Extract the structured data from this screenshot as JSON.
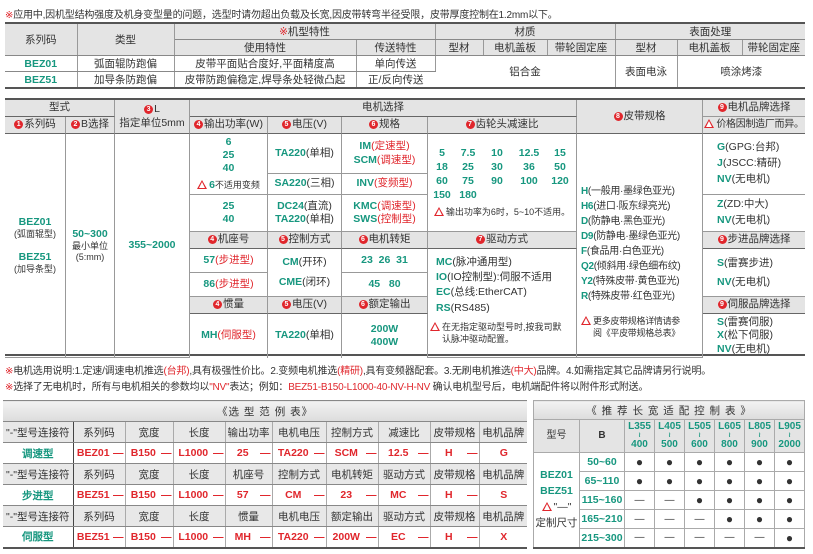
{
  "top_note": {
    "mark": "※",
    "text": "应用中,因机型结构强度及机身变型量的问题，选型时请勿超出负载及长宽,因皮带转弯半径受限，皮带厚度控制在1.2mm以下。"
  },
  "spec_table": {
    "h_series": "系列码",
    "h_type": "类型",
    "h_feature_mark": "※",
    "h_feature": "机型特性",
    "h_material": "材质",
    "h_surface": "表面处理",
    "h_usage": "使用特性",
    "h_transfer": "传送特性",
    "h_profile": "型材",
    "h_cover": "电机盖板",
    "h_pulley": "带轮固定座",
    "rows": [
      {
        "code": "BEZ01",
        "type": "弧面辊防跑偏",
        "usage": "皮带平面贴合度好,平面精度高",
        "transfer": "单向传送"
      },
      {
        "code": "BEZ51",
        "type": "加导条防跑偏",
        "usage": "皮带防跑偏稳定,焊导条处轻微凸起",
        "transfer": "正/反向传送"
      }
    ],
    "material": "铝合金",
    "surface_profile": "表面电泳",
    "surface_other": "喷涂烤漆"
  },
  "selection": {
    "h_model": "型式",
    "h_series": "系列码",
    "h_b": "B选择",
    "h_l": "L",
    "h_l_unit": "指定单位5mm",
    "h_motor": "电机选择",
    "h_power": "输出功率(W)",
    "h_voltage": "电压(V)",
    "h_spec": "规格",
    "h_ratio": "齿轮头减速比",
    "h_belt": "皮带规格",
    "h_brand": "电机品牌选择",
    "brand_note": "价格因制造厂而异。",
    "nums": {
      "n1": "1",
      "n2": "2",
      "n3": "3",
      "n4": "4",
      "n5": "5",
      "n6": "6",
      "n7": "7",
      "n8": "8",
      "n9": "9"
    },
    "series": [
      {
        "code": "BEZ01",
        "desc": "(弧面辊型)"
      },
      {
        "code": "BEZ51",
        "desc": "(加导条型)"
      }
    ],
    "b_range": "50~300",
    "b_unit1": "最小单位",
    "b_unit2": "(5:mm)",
    "l_range": "355~2000",
    "power_a": [
      "6",
      "25",
      "40"
    ],
    "power_note_val": "6",
    "power_note": "不适用变频",
    "volt_a": {
      "code": "TA220",
      "desc": "(单相)"
    },
    "volt_b": {
      "code": "SA220",
      "desc": "(三相)"
    },
    "spec_a": [
      {
        "code": "IM",
        "desc": "(定速型)"
      },
      {
        "code": "SCM",
        "desc": "(调速型)"
      }
    ],
    "spec_b": {
      "code": "INV",
      "desc": "(变频型)"
    },
    "power_c": [
      "25",
      "40"
    ],
    "volt_c": [
      {
        "code": "DC24",
        "desc": "(直流)"
      },
      {
        "code": "TA220",
        "desc": "(单相)"
      }
    ],
    "spec_c": [
      {
        "code": "KMC",
        "desc": "(调速型)"
      },
      {
        "code": "SWS",
        "desc": "(控制型)"
      }
    ],
    "ratios": [
      "5",
      "7.5",
      "10",
      "12.5",
      "15",
      "18",
      "25",
      "30",
      "36",
      "50",
      "60",
      "75",
      "90",
      "100",
      "120",
      "150",
      "180"
    ],
    "ratio_note": "输出功率为6时，5~10不适用。",
    "h_frame": "机座号",
    "h_control": "控制方式",
    "h_torque": "电机转矩",
    "h_drive": "驱动方式",
    "frames": [
      {
        "code": "57",
        "desc": "(步进型)"
      },
      {
        "code": "86",
        "desc": "(步进型)"
      }
    ],
    "controls": [
      {
        "code": "CM",
        "desc": "(开环)"
      },
      {
        "code": "CME",
        "desc": "(闭环)"
      }
    ],
    "torque_a": "23  26  31",
    "torque_b": "45   80",
    "drives": [
      {
        "code": "MC",
        "desc": "(脉冲通用型)"
      },
      {
        "code": "IO",
        "desc": "(IO控制型):伺服不适用"
      },
      {
        "code": "EC",
        "desc": "(总线:EtherCAT)"
      },
      {
        "code": "RS",
        "desc": "(RS485)"
      }
    ],
    "drive_note1": "在无指定驱动型号时,按我司默",
    "drive_note2": "认脉冲驱动配置。",
    "h_inertia": "惯量",
    "h_voltage2": "电压(V)",
    "h_rated": "额定输出",
    "inertia": {
      "code": "MH",
      "desc": "(伺服型)"
    },
    "volt_servo": {
      "code": "TA220",
      "desc": "(单相)"
    },
    "rated": [
      "200W",
      "400W"
    ],
    "belts": [
      {
        "code": "H",
        "desc": "(一般用·墨绿色亚光)"
      },
      {
        "code": "H6",
        "desc": "(进口·阪东绿亮光)"
      },
      {
        "code": "D",
        "desc": "(防静电·黑色亚光)"
      },
      {
        "code": "D9",
        "desc": "(防静电·墨绿色亚光)"
      },
      {
        "code": "F",
        "desc": "(食品用·白色亚光)"
      },
      {
        "code": "Q2",
        "desc": "(倾斜用·绿色细布纹)"
      },
      {
        "code": "Y2",
        "desc": "(特殊皮带·黄色亚光)"
      },
      {
        "code": "R",
        "desc": "(特殊皮带·红色亚光)"
      }
    ],
    "belt_note1": "更多皮带规格详情请参",
    "belt_note2": "阅《平皮带规格总表》",
    "brands_a": [
      {
        "code": "G",
        "desc": "(GPG:台邦)"
      },
      {
        "code": "J",
        "desc": "(JSCC:精研)"
      },
      {
        "code": "NV",
        "desc": "(无电机)"
      }
    ],
    "brands_b": [
      {
        "code": "Z",
        "desc": "(ZD:中大)"
      },
      {
        "code": "NV",
        "desc": "(无电机)"
      }
    ],
    "h_step_brand": "步进品牌选择",
    "step_brands": [
      {
        "code": "S",
        "desc": "(雷赛步进)"
      },
      {
        "code": "NV",
        "desc": "(无电机)"
      }
    ],
    "h_servo_brand": "伺服品牌选择",
    "servo_brands": [
      {
        "code": "S",
        "desc": "(雷赛伺服)"
      },
      {
        "code": "X",
        "desc": "(松下伺服)"
      },
      {
        "code": "NV",
        "desc": "(无电机)"
      }
    ]
  },
  "notes": [
    [
      {
        "t": "※",
        "c": "r"
      },
      {
        "t": "电机选用说明:1.定速/调速电机推选",
        "c": ""
      },
      {
        "t": "(台邦)",
        "c": "r"
      },
      {
        "t": ",具有极强性价比。2.变频电机推选",
        "c": ""
      },
      {
        "t": "(精研)",
        "c": "r"
      },
      {
        "t": ",具有变频器配套。3.无刷电机推选",
        "c": ""
      },
      {
        "t": "(中大)",
        "c": "r"
      },
      {
        "t": "品牌。4.如需指定其它品牌请另行说明。",
        "c": ""
      }
    ],
    [
      {
        "t": "※",
        "c": "r"
      },
      {
        "t": "选择了无电机时，所有与电机相关的参数均以",
        "c": ""
      },
      {
        "t": "\"NV\"",
        "c": "r"
      },
      {
        "t": "表达；例如：",
        "c": ""
      },
      {
        "t": "BEZ51-B150-L1000-40-NV-H-NV",
        "c": "r"
      },
      {
        "t": "  确认电机型号后，电机端配件将以附件形式附送。",
        "c": ""
      }
    ]
  ],
  "example_table": {
    "title": "《选 型 范 例 表》",
    "connector_label": "\"-\"型号连接符",
    "dash": "—",
    "sections": [
      {
        "headers": [
          "系列码",
          "宽度",
          "长度",
          "输出功率",
          "电机电压",
          "控制方式",
          "减速比",
          "皮带规格",
          "电机品牌"
        ],
        "name": "调速型",
        "values": [
          "BEZ01",
          "B150",
          "L1000",
          "25",
          "TA220",
          "SCM",
          "12.5",
          "H",
          "G"
        ]
      },
      {
        "headers": [
          "系列码",
          "宽度",
          "长度",
          "机座号",
          "控制方式",
          "电机转矩",
          "驱动方式",
          "皮带规格",
          "电机品牌"
        ],
        "name": "步进型",
        "values": [
          "BEZ51",
          "B150",
          "L1000",
          "57",
          "CM",
          "23",
          "MC",
          "H",
          "S"
        ]
      },
      {
        "headers": [
          "系列码",
          "宽度",
          "长度",
          "惯量",
          "电机电压",
          "额定输出",
          "驱动方式",
          "皮带规格",
          "电机品牌"
        ],
        "name": "伺服型",
        "values": [
          "BEZ51",
          "B150",
          "L1000",
          "MH",
          "TA220",
          "200W",
          "EC",
          "H",
          "X"
        ]
      }
    ]
  },
  "fit_table": {
    "title": "《 推 荐 长 宽 适 配 控 制 表 》",
    "model_label": "型号",
    "b_label": "B",
    "tilde": "≀",
    "l_ranges": [
      [
        "L355",
        "400"
      ],
      [
        "L405",
        "500"
      ],
      [
        "L505",
        "600"
      ],
      [
        "L605",
        "800"
      ],
      [
        "L805",
        "900"
      ],
      [
        "L905",
        "2000"
      ]
    ],
    "models": [
      "BEZ01",
      "BEZ51"
    ],
    "note_mark": "\"—\"",
    "note_text": "定制尺寸",
    "rows": [
      {
        "b": "50~60",
        "marks": [
          "●",
          "●",
          "●",
          "●",
          "●",
          "●"
        ]
      },
      {
        "b": "65~110",
        "marks": [
          "●",
          "●",
          "●",
          "●",
          "●",
          "●"
        ]
      },
      {
        "b": "115~160",
        "marks": [
          "—",
          "—",
          "●",
          "●",
          "●",
          "●"
        ]
      },
      {
        "b": "165~210",
        "marks": [
          "—",
          "—",
          "—",
          "●",
          "●",
          "●"
        ]
      },
      {
        "b": "215~300",
        "marks": [
          "—",
          "—",
          "—",
          "—",
          "—",
          "●"
        ]
      }
    ]
  },
  "colors": {
    "accent_green": "#17977f",
    "accent_red": "#e0262c",
    "header_gray": "#e4e4e4"
  }
}
